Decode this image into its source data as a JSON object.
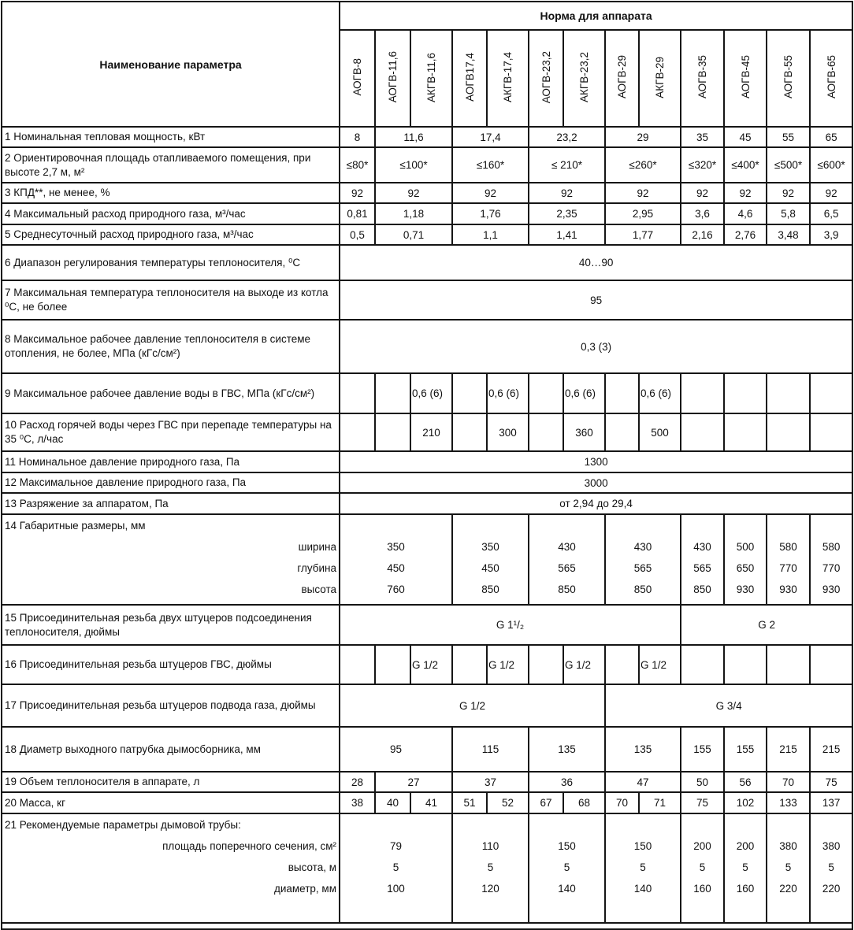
{
  "header": {
    "param_title": "Наименование параметра",
    "norm_title": "Норма для аппарата",
    "models": [
      "АОГВ-8",
      "АОГВ-11,6",
      "АКГВ-11,6",
      "АОГВ17,4",
      "АКГВ-17,4",
      "АОГВ-23,2",
      "АКГВ-23,2",
      "АОГВ-29",
      "АКГВ-29",
      "АОГВ-35",
      "АОГВ-45",
      "АОГВ-55",
      "АОГВ-65"
    ]
  },
  "rows": [
    {
      "label": [
        "1 Номинальная тепловая мощность, кВт"
      ],
      "cells": [
        {
          "v": "8"
        },
        {
          "v": "11,6",
          "span": 2
        },
        {
          "v": "17,4",
          "span": 2
        },
        {
          "v": "23,2",
          "span": 2
        },
        {
          "v": "29",
          "span": 2
        },
        {
          "v": "35"
        },
        {
          "v": "45"
        },
        {
          "v": "55"
        },
        {
          "v": "65"
        }
      ]
    },
    {
      "label": [
        "2 Ориентировочная площадь отапливаемого помещения, при высоте 2,7 м, м²"
      ],
      "cells": [
        {
          "v": "≤80*"
        },
        {
          "v": "≤100*",
          "span": 2
        },
        {
          "v": "≤160*",
          "span": 2
        },
        {
          "v": "≤ 210*",
          "span": 2
        },
        {
          "v": "≤260*",
          "span": 2
        },
        {
          "v": "≤320*"
        },
        {
          "v": "≤400*"
        },
        {
          "v": "≤500*"
        },
        {
          "v": "≤600*"
        }
      ]
    },
    {
      "label": [
        "3 КПД**, не менее, %"
      ],
      "cells": [
        {
          "v": "92"
        },
        {
          "v": "92",
          "span": 2
        },
        {
          "v": "92",
          "span": 2
        },
        {
          "v": "92",
          "span": 2
        },
        {
          "v": "92",
          "span": 2
        },
        {
          "v": "92"
        },
        {
          "v": "92"
        },
        {
          "v": "92"
        },
        {
          "v": "92"
        }
      ]
    },
    {
      "label": [
        "4 Максимальный расход природного газа, м³/час"
      ],
      "cells": [
        {
          "v": "0,81"
        },
        {
          "v": "1,18",
          "span": 2
        },
        {
          "v": "1,76",
          "span": 2
        },
        {
          "v": "2,35",
          "span": 2
        },
        {
          "v": "2,95",
          "span": 2
        },
        {
          "v": "3,6"
        },
        {
          "v": "4,6"
        },
        {
          "v": "5,8"
        },
        {
          "v": "6,5"
        }
      ]
    },
    {
      "label": [
        "5 Среднесуточный расход природного газа, м³/час"
      ],
      "cells": [
        {
          "v": "0,5"
        },
        {
          "v": "0,71",
          "span": 2
        },
        {
          "v": "1,1",
          "span": 2
        },
        {
          "v": "1,41",
          "span": 2
        },
        {
          "v": "1,77",
          "span": 2
        },
        {
          "v": "2,16"
        },
        {
          "v": "2,76"
        },
        {
          "v": "3,48"
        },
        {
          "v": "3,9"
        }
      ]
    },
    {
      "label": [
        "6 Диапазон регулирования температуры теплоносителя, ⁰С"
      ],
      "cells": [
        {
          "v": "40…90",
          "span": 13
        }
      ]
    },
    {
      "label": [
        "7 Максимальная температура теплоносителя на выходе из котла ⁰С, не более"
      ],
      "cells": [
        {
          "v": "95",
          "span": 13
        }
      ]
    },
    {
      "label": [
        "8 Максимальное рабочее давление теплоносителя в системе отопления, не более, МПа (кГс/см²)"
      ],
      "cells": [
        {
          "v": "0,3 (3)",
          "span": 13
        }
      ]
    },
    {
      "label": [
        "9 Максимальное рабочее давление воды в ГВС, МПа (кГс/см²)"
      ],
      "cells": [
        {
          "v": ""
        },
        {
          "v": ""
        },
        {
          "v": "0,6 (6)",
          "left": true
        },
        {
          "v": ""
        },
        {
          "v": "0,6 (6)",
          "left": true
        },
        {
          "v": ""
        },
        {
          "v": "0,6 (6)",
          "left": true
        },
        {
          "v": ""
        },
        {
          "v": "0,6 (6)",
          "left": true
        },
        {
          "v": ""
        },
        {
          "v": ""
        },
        {
          "v": ""
        },
        {
          "v": ""
        }
      ]
    },
    {
      "label": [
        "10 Расход горячей воды через ГВС при перепаде температуры на 35 ⁰С, л/час"
      ],
      "cells": [
        {
          "v": ""
        },
        {
          "v": ""
        },
        {
          "v": "210"
        },
        {
          "v": ""
        },
        {
          "v": "300"
        },
        {
          "v": ""
        },
        {
          "v": "360"
        },
        {
          "v": ""
        },
        {
          "v": "500"
        },
        {
          "v": ""
        },
        {
          "v": ""
        },
        {
          "v": ""
        },
        {
          "v": ""
        }
      ]
    },
    {
      "label": [
        "11 Номинальное давление природного газа, Па"
      ],
      "cells": [
        {
          "v": "1300",
          "span": 13
        }
      ]
    },
    {
      "label": [
        "12 Максимальное давление природного газа, Па"
      ],
      "cells": [
        {
          "v": "3000",
          "span": 13
        }
      ]
    },
    {
      "label": [
        "13 Разряжение за аппаратом, Па"
      ],
      "cells": [
        {
          "v": "от 2,94 до 29,4",
          "span": 13
        }
      ]
    },
    {
      "label": [
        "14 Габаритные размеры, мм"
      ],
      "sublabels": [
        "ширина",
        "глубина",
        "высота"
      ],
      "cells": [
        {
          "v": [
            "350",
            "450",
            "760"
          ],
          "span": 3
        },
        {
          "v": [
            "350",
            "450",
            "850"
          ],
          "span": 2
        },
        {
          "v": [
            "430",
            "565",
            "850"
          ],
          "span": 2
        },
        {
          "v": [
            "430",
            "565",
            "850"
          ],
          "span": 2
        },
        {
          "v": [
            "430",
            "565",
            "850"
          ]
        },
        {
          "v": [
            "500",
            "650",
            "930"
          ]
        },
        {
          "v": [
            "580",
            "770",
            "930"
          ]
        },
        {
          "v": [
            "580",
            "770",
            "930"
          ]
        }
      ]
    },
    {
      "label": [
        "15 Присоединительная резьба двух штуцеров подсоединения теплоносителя, дюймы"
      ],
      "cells": [
        {
          "v": "G 1¹/₂",
          "span": 9
        },
        {
          "v": "G 2",
          "span": 4
        }
      ]
    },
    {
      "label": [
        "16 Присоединительная резьба штуцеров ГВС, дюймы"
      ],
      "cells": [
        {
          "v": ""
        },
        {
          "v": ""
        },
        {
          "v": "G 1/2",
          "left": true
        },
        {
          "v": ""
        },
        {
          "v": "G 1/2",
          "left": true
        },
        {
          "v": ""
        },
        {
          "v": "G 1/2",
          "left": true
        },
        {
          "v": ""
        },
        {
          "v": "G 1/2",
          "left": true
        },
        {
          "v": ""
        },
        {
          "v": ""
        },
        {
          "v": ""
        },
        {
          "v": ""
        }
      ]
    },
    {
      "label": [
        "17 Присоединительная резьба штуцеров подвода газа, дюймы"
      ],
      "cells": [
        {
          "v": "G 1/2",
          "span": 7
        },
        {
          "v": "G 3/4",
          "span": 6
        }
      ]
    },
    {
      "label": [
        "18 Диаметр выходного патрубка дымосборника, мм"
      ],
      "cells": [
        {
          "v": "95",
          "span": 3
        },
        {
          "v": "115",
          "span": 2
        },
        {
          "v": "135",
          "span": 2
        },
        {
          "v": "135",
          "span": 2
        },
        {
          "v": "155"
        },
        {
          "v": "155"
        },
        {
          "v": "215"
        },
        {
          "v": "215"
        }
      ]
    },
    {
      "label": [
        "19 Объем теплоносителя в аппарате, л"
      ],
      "cells": [
        {
          "v": "28"
        },
        {
          "v": "27",
          "span": 2
        },
        {
          "v": "37",
          "span": 2
        },
        {
          "v": "36",
          "span": 2
        },
        {
          "v": "47",
          "span": 2
        },
        {
          "v": "50"
        },
        {
          "v": "56"
        },
        {
          "v": "70"
        },
        {
          "v": "75"
        }
      ]
    },
    {
      "label": [
        "20 Масса, кг"
      ],
      "cells": [
        {
          "v": "38"
        },
        {
          "v": "40"
        },
        {
          "v": "41"
        },
        {
          "v": "51"
        },
        {
          "v": "52"
        },
        {
          "v": "67"
        },
        {
          "v": "68"
        },
        {
          "v": "70"
        },
        {
          "v": "71"
        },
        {
          "v": "75"
        },
        {
          "v": "102"
        },
        {
          "v": "133"
        },
        {
          "v": "137"
        }
      ]
    },
    {
      "label": [
        "21 Рекомендуемые параметры дымовой трубы:"
      ],
      "sublabels": [
        "площадь поперечного сечения, см²",
        "высота, м",
        "диаметр, мм"
      ],
      "cells": [
        {
          "v": [
            "79",
            "5",
            "100"
          ],
          "span": 3
        },
        {
          "v": [
            "110",
            "5",
            "120"
          ],
          "span": 2
        },
        {
          "v": [
            "150",
            "5",
            "140"
          ],
          "span": 2
        },
        {
          "v": [
            "150",
            "5",
            "140"
          ],
          "span": 2
        },
        {
          "v": [
            "200",
            "5",
            "160"
          ]
        },
        {
          "v": [
            "200",
            "5",
            "160"
          ]
        },
        {
          "v": [
            "380",
            "5",
            "220"
          ]
        },
        {
          "v": [
            "380",
            "5",
            "220"
          ]
        }
      ]
    }
  ]
}
